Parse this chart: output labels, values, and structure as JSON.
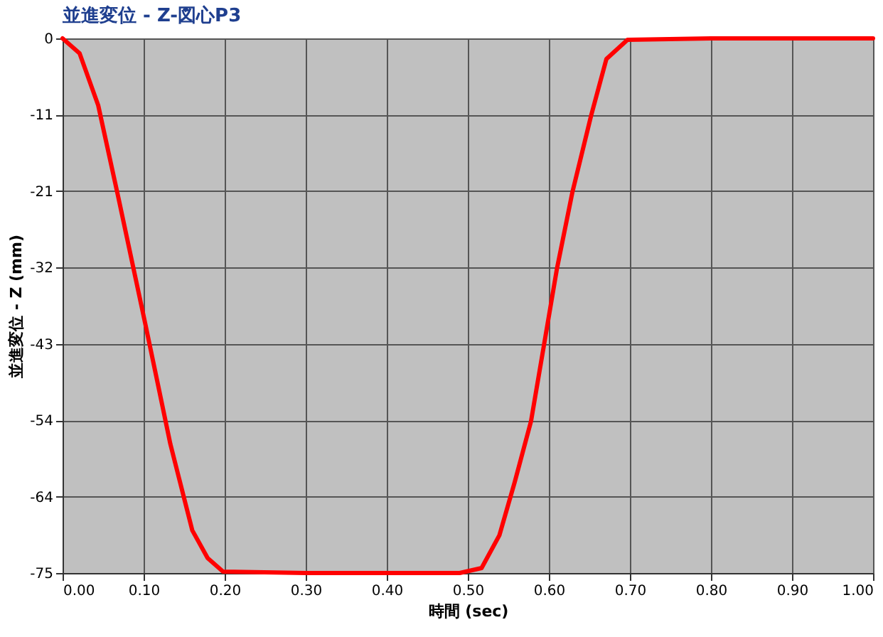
{
  "chart_data": {
    "type": "line",
    "title": "並進変位 - Z-図心P3",
    "xlabel": "時間 (sec)",
    "ylabel": "並進変位 - Z (mm)",
    "x": [
      0,
      0.021,
      0.044,
      0.069,
      0.102,
      0.133,
      0.16,
      0.179,
      0.198,
      0.3,
      0.4,
      0.47,
      0.49,
      0.517,
      0.539,
      0.558,
      0.578,
      0.594,
      0.61,
      0.629,
      0.652,
      0.671,
      0.697,
      0.8,
      0.9,
      1.0
    ],
    "series": [
      {
        "color": "#ff0000",
        "values": [
          0,
          -2.1,
          -9.4,
          -22.4,
          -40,
          -56.9,
          -69,
          -72.9,
          -74.8,
          -75,
          -75,
          -75,
          -75,
          -74.3,
          -69.7,
          -62.2,
          -53.7,
          -43,
          -32.3,
          -21.6,
          -10.9,
          -2.9,
          -0.2,
          0,
          0,
          0
        ]
      }
    ],
    "xlim": [
      0,
      1.0
    ],
    "ylim": [
      -75,
      0
    ],
    "xticks": [
      {
        "value": 0,
        "label": "0.00"
      },
      {
        "value": 0.1,
        "label": "0.10"
      },
      {
        "value": 0.2,
        "label": "0.20"
      },
      {
        "value": 0.3,
        "label": "0.30"
      },
      {
        "value": 0.4,
        "label": "0.40"
      },
      {
        "value": 0.5,
        "label": "0.50"
      },
      {
        "value": 0.6,
        "label": "0.60"
      },
      {
        "value": 0.7,
        "label": "0.70"
      },
      {
        "value": 0.8,
        "label": "0.80"
      },
      {
        "value": 0.9,
        "label": "0.90"
      },
      {
        "value": 1.0,
        "label": "1.00"
      }
    ],
    "yticks": [
      0,
      {
        "value": -10.714,
        "label": "-11"
      },
      {
        "value": -21.429,
        "label": "-21"
      },
      {
        "value": -32.143,
        "label": "-32"
      },
      {
        "value": -42.857,
        "label": "-43"
      },
      {
        "value": -53.571,
        "label": "-54"
      },
      {
        "value": -64.286,
        "label": "-64"
      },
      -75
    ],
    "grid": true,
    "marker": "none",
    "line_style": "solid"
  }
}
